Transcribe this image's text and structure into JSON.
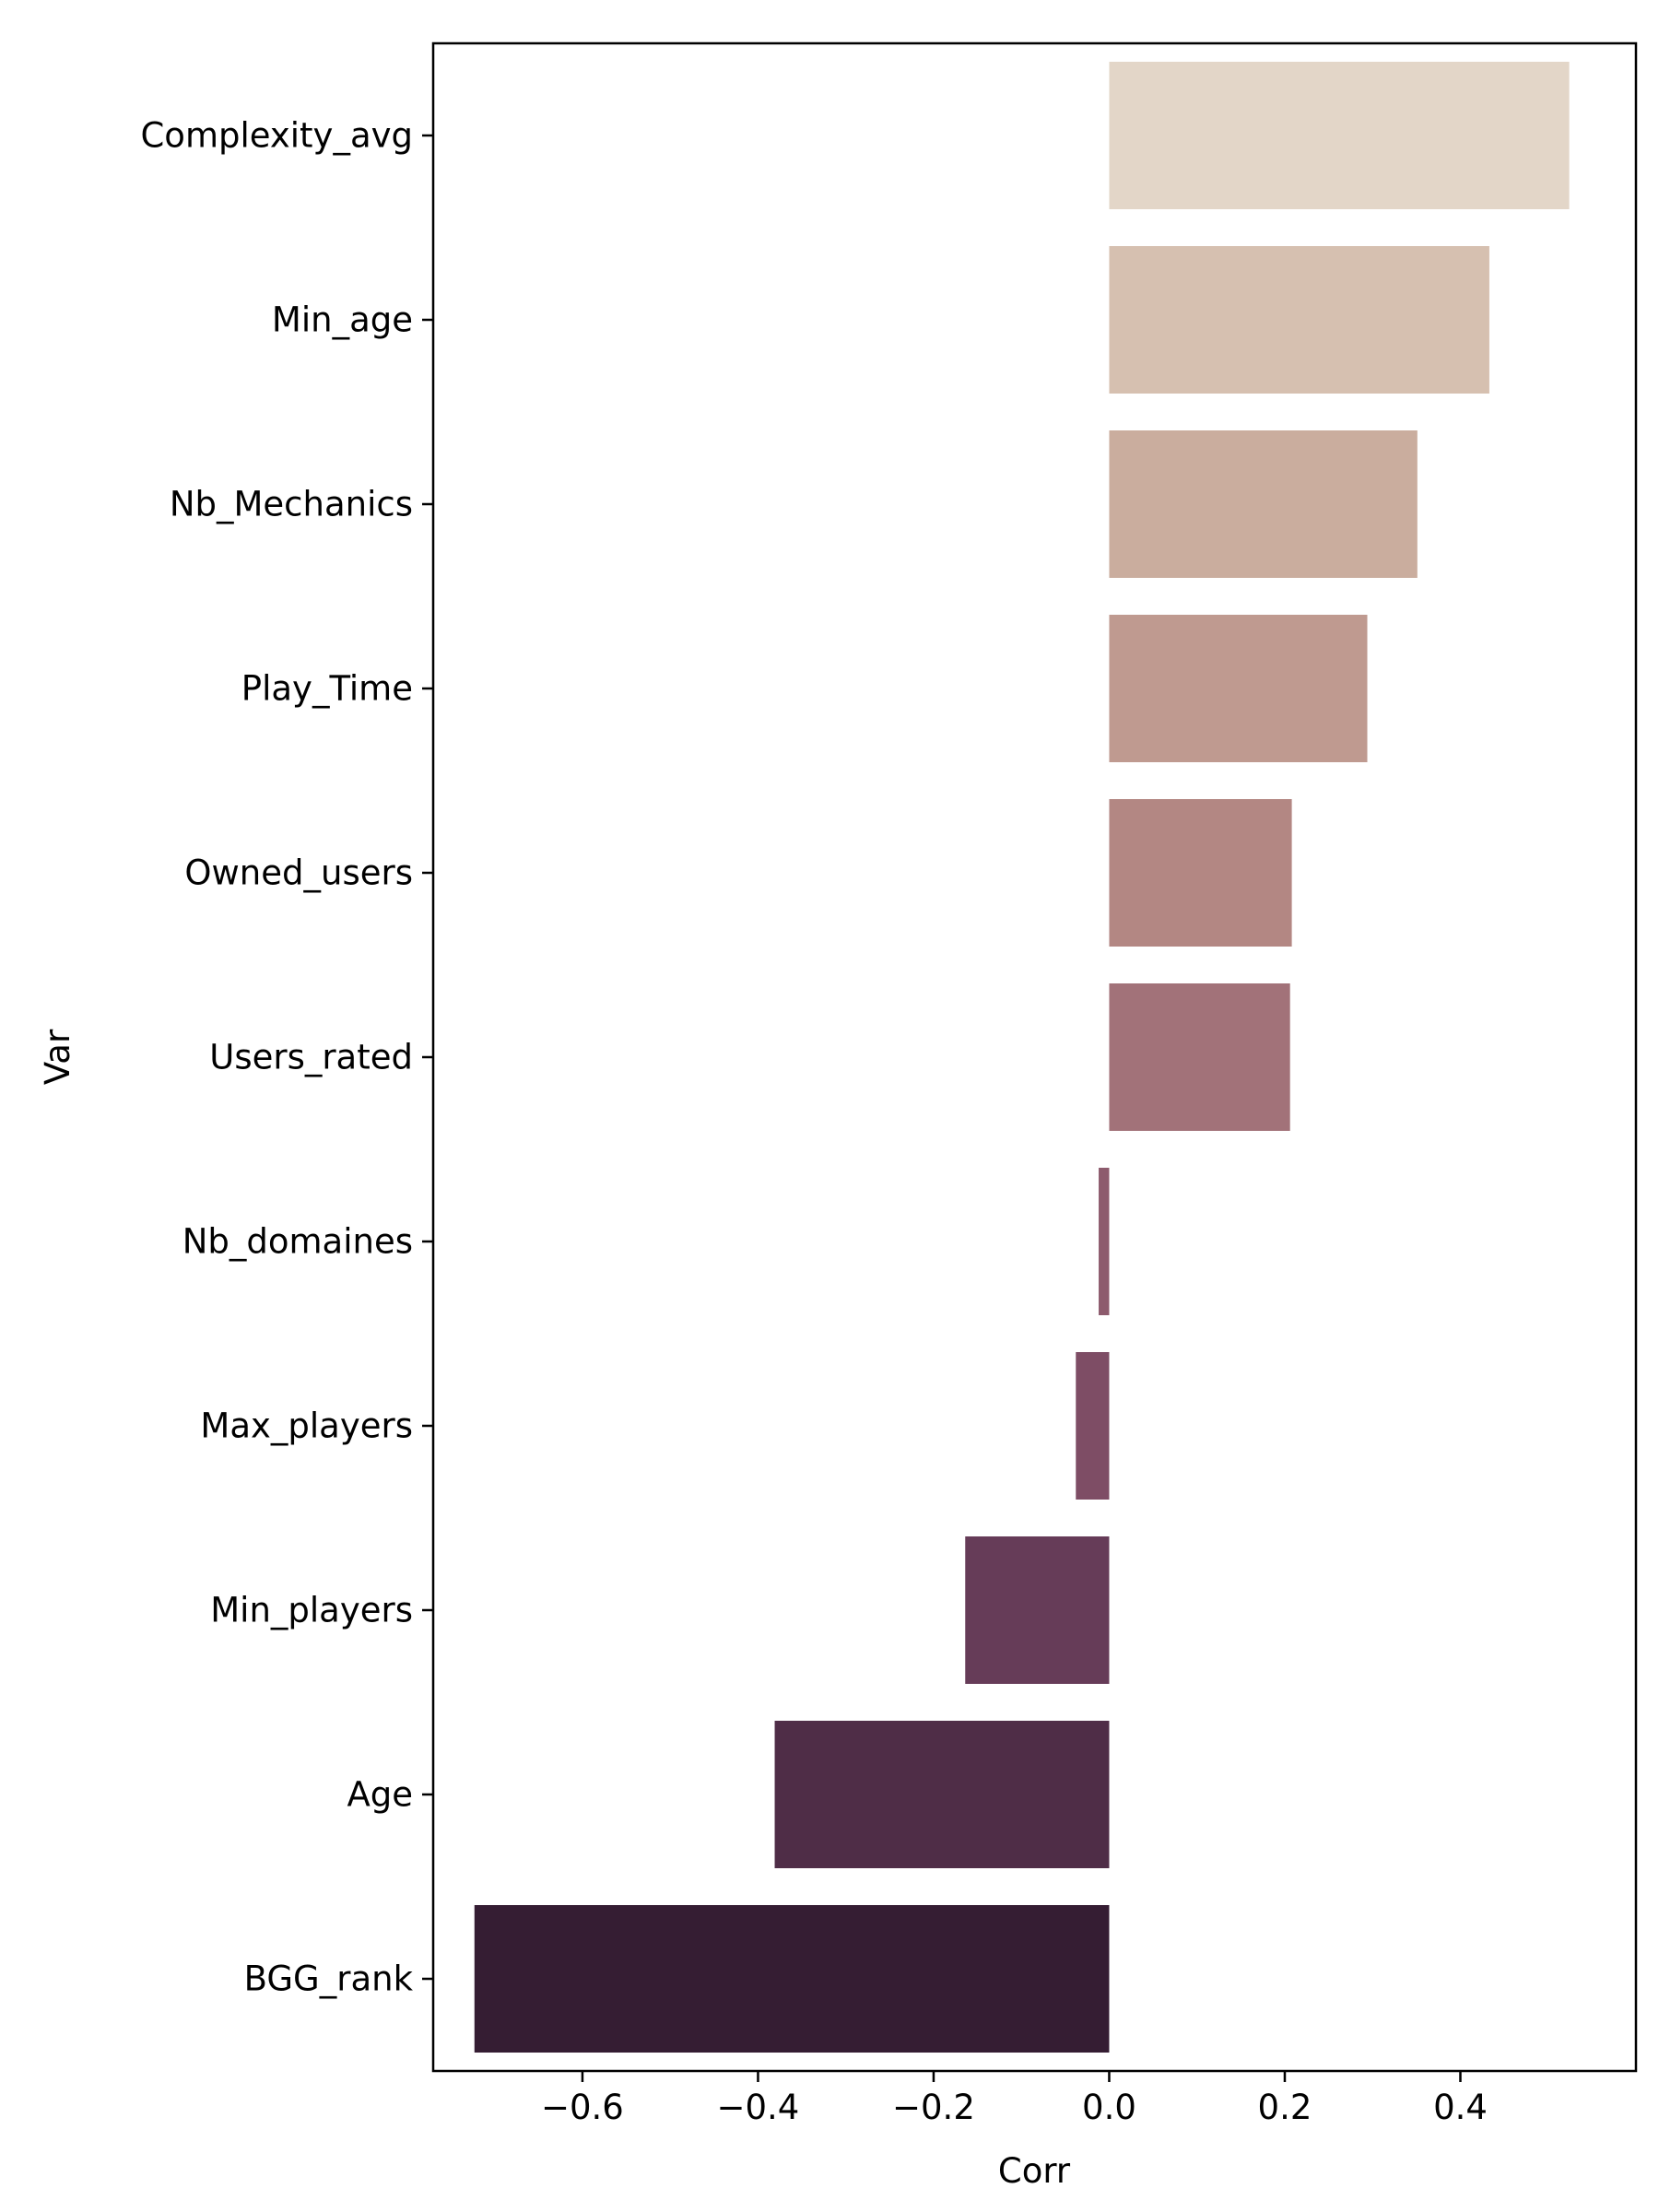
{
  "chart_data": {
    "type": "bar",
    "orientation": "horizontal",
    "xlabel": "Corr",
    "ylabel": "Var",
    "xlim": [
      -0.77,
      0.6
    ],
    "xticks": [
      -0.6,
      -0.4,
      -0.2,
      0.0,
      0.2,
      0.4
    ],
    "xtick_labels": [
      "−0.6",
      "−0.4",
      "−0.2",
      "0.0",
      "0.2",
      "0.4"
    ],
    "grid": false,
    "categories": [
      "Complexity_avg",
      "Min_age",
      "Nb_Mechanics",
      "Play_Time",
      "Owned_users",
      "Users_rated",
      "Nb_domaines",
      "Max_players",
      "Min_players",
      "Age",
      "BGG_rank"
    ],
    "values": [
      0.524,
      0.433,
      0.351,
      0.294,
      0.208,
      0.206,
      -0.012,
      -0.038,
      -0.164,
      -0.381,
      -0.723
    ],
    "colors": [
      "#e3d6c8",
      "#d6c0b0",
      "#caad9e",
      "#bf9a90",
      "#b38783",
      "#a27279",
      "#8d5b6d",
      "#7e4d65",
      "#663c58",
      "#4f2d47",
      "#351d33"
    ]
  }
}
